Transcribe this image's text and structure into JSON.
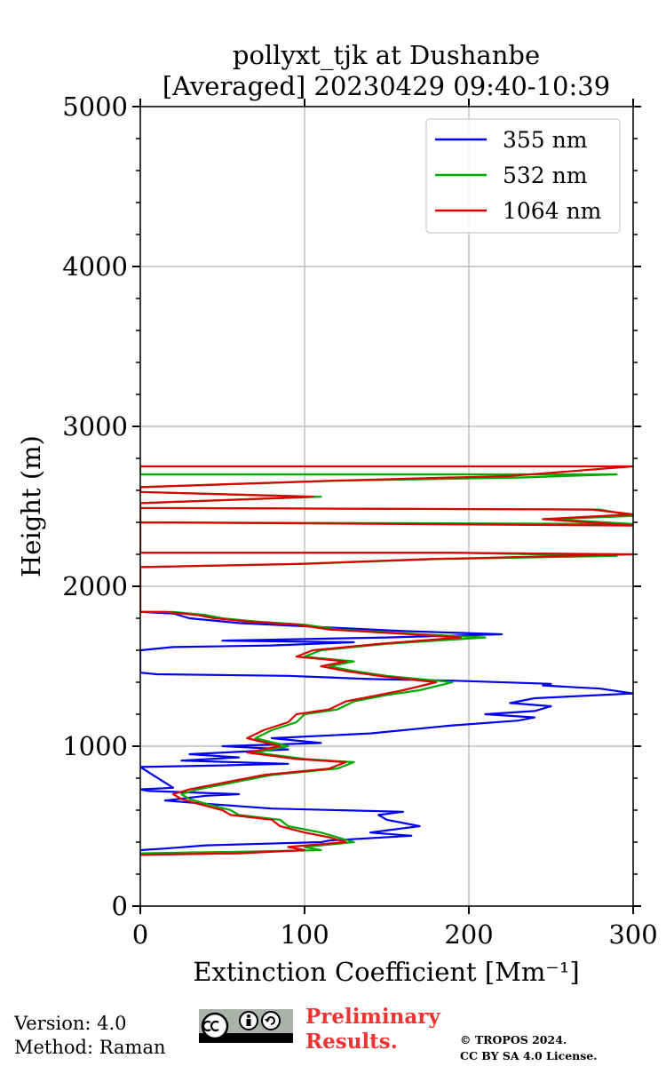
{
  "chart_data": {
    "type": "line",
    "title_line1": "pollyxt_tjk at Dushanbe",
    "title_line2": "[Averaged] 20230429 09:40-10:39",
    "xlabel": "Extinction Coefficient [Mm⁻¹]",
    "ylabel": "Height (m)",
    "xlim": [
      0,
      300
    ],
    "ylim": [
      0,
      5000
    ],
    "xticks": [
      "0",
      "100",
      "200",
      "300"
    ],
    "yticks": [
      "0",
      "1000",
      "2000",
      "3000",
      "4000",
      "5000"
    ],
    "grid": true,
    "legend_position": "top-right",
    "series": [
      {
        "name": "355 nm",
        "color": "#0000ee",
        "points": [
          [
            0,
            350
          ],
          [
            15,
            360
          ],
          [
            40,
            380
          ],
          [
            75,
            390
          ],
          [
            110,
            400
          ],
          [
            115,
            410
          ],
          [
            165,
            440
          ],
          [
            140,
            460
          ],
          [
            170,
            500
          ],
          [
            150,
            540
          ],
          [
            145,
            570
          ],
          [
            160,
            590
          ],
          [
            80,
            610
          ],
          [
            40,
            640
          ],
          [
            15,
            660
          ],
          [
            40,
            690
          ],
          [
            60,
            700
          ],
          [
            5,
            720
          ],
          [
            0,
            730
          ],
          [
            20,
            740
          ],
          [
            0,
            870
          ],
          [
            50,
            880
          ],
          [
            90,
            890
          ],
          [
            25,
            910
          ],
          [
            60,
            930
          ],
          [
            30,
            950
          ],
          [
            90,
            980
          ],
          [
            50,
            1000
          ],
          [
            110,
            1020
          ],
          [
            80,
            1050
          ],
          [
            140,
            1080
          ],
          [
            170,
            1110
          ],
          [
            190,
            1130
          ],
          [
            230,
            1160
          ],
          [
            240,
            1180
          ],
          [
            210,
            1200
          ],
          [
            240,
            1220
          ],
          [
            250,
            1250
          ],
          [
            225,
            1270
          ],
          [
            240,
            1300
          ],
          [
            300,
            1330
          ],
          [
            280,
            1360
          ],
          [
            245,
            1380
          ],
          [
            250,
            1390
          ],
          [
            190,
            1410
          ],
          [
            140,
            1420
          ],
          [
            90,
            1440
          ],
          [
            10,
            1450
          ],
          [
            0,
            1460
          ],
          [
            0,
            1600
          ],
          [
            20,
            1620
          ],
          [
            80,
            1630
          ],
          [
            130,
            1650
          ],
          [
            50,
            1660
          ],
          [
            150,
            1680
          ],
          [
            220,
            1700
          ],
          [
            160,
            1720
          ],
          [
            120,
            1740
          ],
          [
            60,
            1770
          ],
          [
            30,
            1800
          ],
          [
            20,
            1830
          ],
          [
            0,
            1840
          ]
        ]
      },
      {
        "name": "532 nm",
        "color": "#00aa00",
        "points": [
          [
            0,
            330
          ],
          [
            60,
            340
          ],
          [
            110,
            350
          ],
          [
            100,
            370
          ],
          [
            130,
            400
          ],
          [
            120,
            430
          ],
          [
            110,
            460
          ],
          [
            90,
            500
          ],
          [
            85,
            540
          ],
          [
            60,
            570
          ],
          [
            55,
            600
          ],
          [
            40,
            640
          ],
          [
            30,
            670
          ],
          [
            25,
            700
          ],
          [
            35,
            730
          ],
          [
            60,
            780
          ],
          [
            80,
            820
          ],
          [
            120,
            860
          ],
          [
            130,
            900
          ],
          [
            100,
            920
          ],
          [
            70,
            960
          ],
          [
            90,
            1000
          ],
          [
            70,
            1050
          ],
          [
            80,
            1100
          ],
          [
            95,
            1150
          ],
          [
            100,
            1200
          ],
          [
            120,
            1230
          ],
          [
            130,
            1280
          ],
          [
            150,
            1320
          ],
          [
            170,
            1350
          ],
          [
            190,
            1400
          ],
          [
            150,
            1440
          ],
          [
            130,
            1470
          ],
          [
            115,
            1500
          ],
          [
            130,
            1530
          ],
          [
            100,
            1560
          ],
          [
            110,
            1600
          ],
          [
            150,
            1640
          ],
          [
            210,
            1680
          ],
          [
            170,
            1700
          ],
          [
            120,
            1730
          ],
          [
            100,
            1760
          ],
          [
            70,
            1780
          ],
          [
            50,
            1800
          ],
          [
            40,
            1820
          ],
          [
            20,
            1840
          ],
          [
            0,
            1840
          ],
          [
            0,
            2120
          ],
          [
            100,
            2140
          ],
          [
            180,
            2170
          ],
          [
            290,
            2190
          ],
          [
            190,
            2210
          ],
          [
            0,
            2210
          ],
          [
            0,
            2490
          ],
          [
            280,
            2480
          ],
          [
            300,
            2440
          ],
          [
            250,
            2420
          ],
          [
            300,
            2390
          ],
          [
            0,
            2400
          ],
          [
            0,
            2520
          ],
          [
            110,
            2560
          ],
          [
            0,
            2590
          ],
          [
            0,
            2620
          ],
          [
            120,
            2660
          ],
          [
            230,
            2680
          ],
          [
            290,
            2700
          ],
          [
            0,
            2700
          ],
          [
            0,
            2750
          ]
        ]
      },
      {
        "name": "1064 nm",
        "color": "#dd0000",
        "points": [
          [
            0,
            320
          ],
          [
            60,
            330
          ],
          [
            100,
            350
          ],
          [
            90,
            370
          ],
          [
            125,
            400
          ],
          [
            115,
            430
          ],
          [
            100,
            460
          ],
          [
            85,
            500
          ],
          [
            80,
            540
          ],
          [
            55,
            570
          ],
          [
            50,
            600
          ],
          [
            35,
            640
          ],
          [
            25,
            670
          ],
          [
            20,
            700
          ],
          [
            30,
            730
          ],
          [
            55,
            780
          ],
          [
            75,
            820
          ],
          [
            115,
            860
          ],
          [
            125,
            900
          ],
          [
            95,
            920
          ],
          [
            65,
            960
          ],
          [
            85,
            1000
          ],
          [
            65,
            1050
          ],
          [
            75,
            1100
          ],
          [
            90,
            1150
          ],
          [
            95,
            1200
          ],
          [
            115,
            1230
          ],
          [
            125,
            1280
          ],
          [
            145,
            1320
          ],
          [
            160,
            1350
          ],
          [
            180,
            1400
          ],
          [
            145,
            1440
          ],
          [
            125,
            1470
          ],
          [
            110,
            1500
          ],
          [
            125,
            1530
          ],
          [
            95,
            1560
          ],
          [
            105,
            1600
          ],
          [
            145,
            1640
          ],
          [
            195,
            1680
          ],
          [
            165,
            1700
          ],
          [
            115,
            1730
          ],
          [
            95,
            1760
          ],
          [
            65,
            1780
          ],
          [
            45,
            1800
          ],
          [
            35,
            1820
          ],
          [
            15,
            1840
          ],
          [
            0,
            1840
          ],
          [
            0,
            2120
          ],
          [
            95,
            2140
          ],
          [
            175,
            2170
          ],
          [
            300,
            2200
          ],
          [
            185,
            2210
          ],
          [
            0,
            2210
          ],
          [
            0,
            2490
          ],
          [
            275,
            2480
          ],
          [
            300,
            2450
          ],
          [
            245,
            2420
          ],
          [
            300,
            2380
          ],
          [
            0,
            2400
          ],
          [
            0,
            2520
          ],
          [
            105,
            2560
          ],
          [
            0,
            2590
          ],
          [
            0,
            2620
          ],
          [
            115,
            2660
          ],
          [
            225,
            2690
          ],
          [
            300,
            2750
          ],
          [
            0,
            2750
          ]
        ]
      }
    ]
  },
  "footer": {
    "version": "Version: 4.0",
    "method": "Method: Raman",
    "preliminary_1": "Preliminary",
    "preliminary_2": "Results.",
    "copyright_1": "© TROPOS 2024.",
    "copyright_2": "CC BY SA 4.0 License."
  }
}
